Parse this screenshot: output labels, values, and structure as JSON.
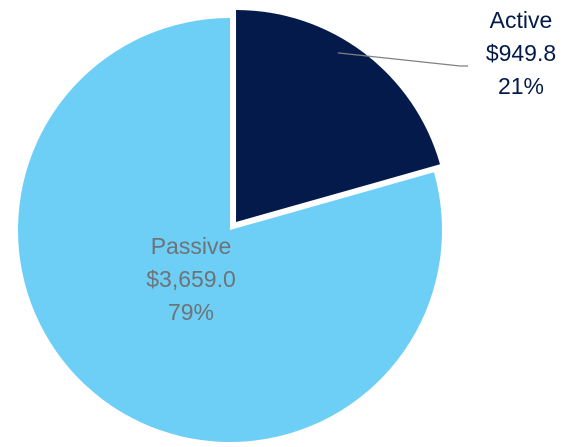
{
  "chart_data": {
    "type": "pie",
    "title": "",
    "series": [
      {
        "values": [
          949.8,
          3659.0
        ],
        "categories": [
          "Active",
          "Passive"
        ]
      }
    ],
    "slices": [
      {
        "name": "Active",
        "value": 949.8,
        "value_label": "$949.8",
        "percent_label": "21%",
        "color": "#031A4A",
        "exploded": true,
        "label_position": "outside-right"
      },
      {
        "name": "Passive",
        "value": 3659.0,
        "value_label": "$3,659.0",
        "percent_label": "79%",
        "color": "#6DCFF6",
        "exploded": false,
        "label_position": "inside"
      }
    ],
    "start_angle": "12 o'clock",
    "direction": "clockwise",
    "legend": "none"
  },
  "styles": {
    "outside_label_color": "#031A4A",
    "inside_label_color": "#6E7378",
    "leader_line_color": "#808080"
  }
}
